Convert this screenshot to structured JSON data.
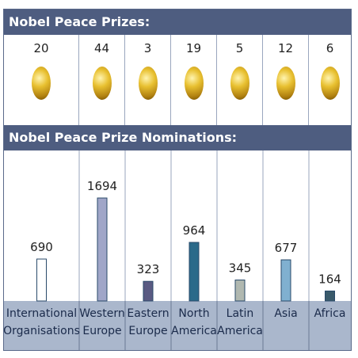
{
  "prizes": {
    "title": "Nobel Peace Prizes:",
    "counts": [
      "20",
      "44",
      "3",
      "19",
      "5",
      "12",
      "6"
    ],
    "medal_icon": "gold-medal-icon"
  },
  "nominations": {
    "title": "Nobel Peace Prize Nominations:"
  },
  "chart_data": {
    "type": "bar",
    "title": "Nobel Peace Prize Nominations:",
    "categories": [
      [
        "International",
        "Organisations"
      ],
      [
        "Western",
        "Europe"
      ],
      [
        "Eastern",
        "Europe"
      ],
      [
        "North",
        "America"
      ],
      [
        "Latin",
        "America"
      ],
      [
        "Asia"
      ],
      [
        "Africa"
      ]
    ],
    "values": [
      690,
      1694,
      323,
      964,
      345,
      677,
      164
    ],
    "labels": [
      "690",
      "1694",
      "323",
      "964",
      "345",
      "677",
      "164"
    ],
    "colors": [
      "#ffffff",
      "#a0a6c8",
      "#5a5a82",
      "#2a6a8a",
      "#b0b8b0",
      "#80b0d0",
      "#3a5a6a"
    ],
    "ylim": [
      0,
      1694
    ],
    "xlabel": "",
    "ylabel": "",
    "grid": false
  }
}
